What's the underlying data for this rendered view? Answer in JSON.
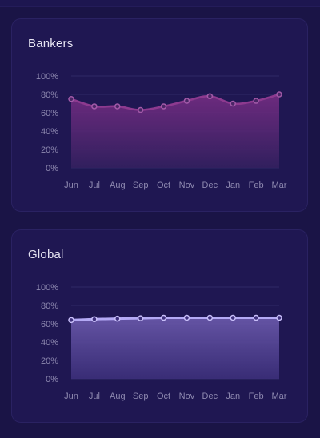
{
  "colors": {
    "background": "#1a1446",
    "card": "#1f1752",
    "bankers_line": "#8d3a8f",
    "bankers_fill_top": "#7a2e86",
    "bankers_fill_bottom": "#33205f",
    "global_line": "#b4a9f5",
    "global_fill_top": "#6857a8",
    "global_fill_bottom": "#3c2f7a",
    "grid": "#2f2867",
    "tick_text": "#8e89b0"
  },
  "chart_data": [
    {
      "type": "area",
      "title": "Bankers",
      "categories": [
        "Jun",
        "Jul",
        "Aug",
        "Sep",
        "Oct",
        "Nov",
        "Dec",
        "Jan",
        "Feb",
        "Mar"
      ],
      "values": [
        75,
        67,
        67,
        63,
        67,
        73,
        78,
        70,
        73,
        80
      ],
      "yticks": [
        "0%",
        "20%",
        "40%",
        "60%",
        "80%",
        "100%"
      ],
      "ylim": [
        0,
        100
      ],
      "grid": true
    },
    {
      "type": "area",
      "title": "Global",
      "categories": [
        "Jun",
        "Jul",
        "Aug",
        "Sep",
        "Oct",
        "Nov",
        "Dec",
        "Jan",
        "Feb",
        "Mar"
      ],
      "values": [
        64,
        65,
        65.5,
        66,
        66.5,
        66.5,
        66.5,
        66.5,
        66.5,
        66.5
      ],
      "yticks": [
        "0%",
        "20%",
        "40%",
        "60%",
        "80%",
        "100%"
      ],
      "ylim": [
        0,
        100
      ],
      "grid": true
    }
  ]
}
